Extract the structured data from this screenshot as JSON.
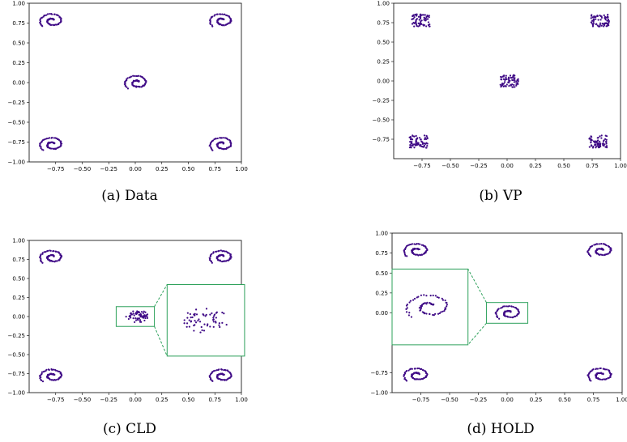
{
  "figure": {
    "marker_color": "#3f0a86",
    "zoom_color": "#2ca05a",
    "axis_color": "#000000"
  },
  "chart_data": [
    {
      "type": "scatter",
      "caption": "(a)  Data",
      "xlim": [
        -1.0,
        1.0
      ],
      "ylim": [
        -1.0,
        1.0
      ],
      "xticks": [
        "−0.75",
        "−0.50",
        "−0.25",
        "0.00",
        "0.25",
        "0.50",
        "0.75",
        "1.00"
      ],
      "yticks": [
        "1.00",
        "0.75",
        "0.50",
        "0.25",
        "0.00",
        "−0.25",
        "−0.50",
        "−0.75",
        "−1.00"
      ],
      "clusters": [
        {
          "style": "spiral",
          "cx": -0.78,
          "cy": 0.78
        },
        {
          "style": "spiral",
          "cx": 0.82,
          "cy": 0.78
        },
        {
          "style": "spiral",
          "cx": 0.02,
          "cy": 0.0
        },
        {
          "style": "spiral",
          "cx": -0.78,
          "cy": -0.78
        },
        {
          "style": "spiral",
          "cx": 0.82,
          "cy": -0.78
        }
      ]
    },
    {
      "type": "scatter",
      "caption": "(b)  VP",
      "xlim": [
        -1.0,
        1.0
      ],
      "ylim": [
        -1.0,
        1.0
      ],
      "xticks": [
        "−0.75",
        "−0.50",
        "−0.25",
        "0.00",
        "0.25",
        "0.50",
        "0.75",
        "1.00"
      ],
      "yticks": [
        "1.00",
        "0.75",
        "0.50",
        "0.25",
        "0.00",
        "−0.25",
        "−0.50",
        "−0.75"
      ],
      "clusters": [
        {
          "style": "blob",
          "cx": -0.76,
          "cy": 0.78
        },
        {
          "style": "blob",
          "cx": 0.82,
          "cy": 0.78
        },
        {
          "style": "blob",
          "cx": 0.02,
          "cy": 0.0
        },
        {
          "style": "blob",
          "cx": -0.78,
          "cy": -0.78
        },
        {
          "style": "blob",
          "cx": 0.8,
          "cy": -0.78
        }
      ]
    },
    {
      "type": "scatter",
      "caption": "(c)  CLD",
      "xlim": [
        -1.0,
        1.0
      ],
      "ylim": [
        -1.0,
        1.0
      ],
      "xticks": [
        "−0.75",
        "−0.50",
        "−0.25",
        "0.00",
        "0.25",
        "0.50",
        "0.75",
        "1.00"
      ],
      "yticks": [
        "1.00",
        "0.75",
        "0.50",
        "0.25",
        "0.00",
        "−0.25",
        "−0.50",
        "−0.75",
        "−1.00"
      ],
      "clusters": [
        {
          "style": "spiral",
          "cx": -0.78,
          "cy": 0.78
        },
        {
          "style": "spiral",
          "cx": 0.82,
          "cy": 0.78
        },
        {
          "style": "noisy",
          "cx": 0.02,
          "cy": 0.0
        },
        {
          "style": "spiral",
          "cx": -0.78,
          "cy": -0.78
        },
        {
          "style": "spiral",
          "cx": 0.82,
          "cy": -0.78
        }
      ],
      "zoom": {
        "source_x": [
          -0.18,
          0.18
        ],
        "source_y": [
          -0.13,
          0.13
        ],
        "inset_x": [
          0.3,
          1.03
        ],
        "inset_y": [
          -0.52,
          0.42
        ]
      }
    },
    {
      "type": "scatter",
      "caption": "(d)  HOLD",
      "xlim": [
        -1.0,
        1.0
      ],
      "ylim": [
        -1.0,
        1.0
      ],
      "xticks": [
        "−0.75",
        "−0.50",
        "−0.25",
        "0.00",
        "0.25",
        "0.50",
        "0.75",
        "1.00"
      ],
      "yticks": [
        "1.00",
        "0.75",
        "0.50",
        "0.25",
        "0.00",
        "−0.75",
        "−1.00"
      ],
      "clusters": [
        {
          "style": "spiral",
          "cx": -0.78,
          "cy": 0.78
        },
        {
          "style": "spiral",
          "cx": 0.82,
          "cy": 0.78
        },
        {
          "style": "spiral",
          "cx": 0.02,
          "cy": 0.0
        },
        {
          "style": "spiral",
          "cx": -0.78,
          "cy": -0.78
        },
        {
          "style": "spiral",
          "cx": 0.82,
          "cy": -0.78
        }
      ],
      "zoom": {
        "source_x": [
          -0.18,
          0.18
        ],
        "source_y": [
          -0.13,
          0.13
        ],
        "inset_x": [
          -1.0,
          -0.34
        ],
        "inset_y": [
          -0.4,
          0.55
        ]
      }
    }
  ]
}
